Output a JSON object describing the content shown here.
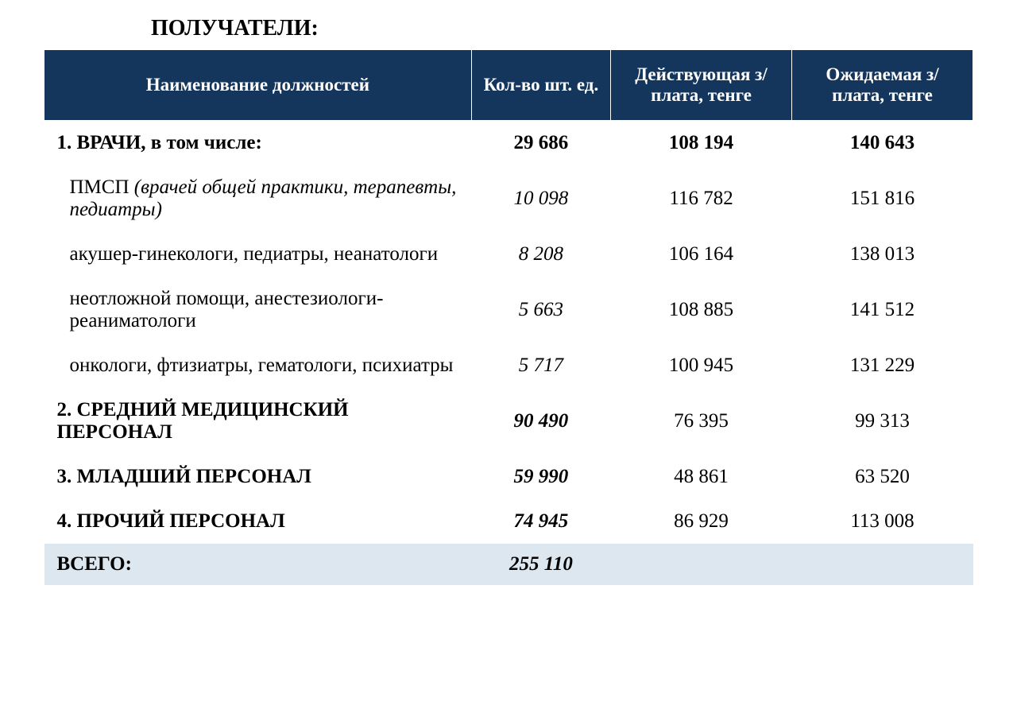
{
  "title": "ПОЛУЧАТЕЛИ:",
  "table": {
    "header_bg_color": "#14365c",
    "header_text_color": "#ffffff",
    "total_bg_color": "#dce7ef",
    "columns": [
      "Наименование должностей",
      "Кол-во шт. ед.",
      "Действующая з/плата, тенге",
      "Ожидаемая з/плата, тенге"
    ],
    "rows": [
      {
        "name": "1. ВРАЧИ, в том числе:",
        "count": "29 686",
        "current": "108 194",
        "expected": "140 643",
        "style": "bold"
      },
      {
        "name_prefix": "ПМСП  ",
        "name_italic": "(врачей общей практики, терапевты, педиатры)",
        "count": "10 098",
        "current": "116 782",
        "expected": "151 816",
        "style": "sub_pmsp"
      },
      {
        "name": "акушер-гинекологи, педиатры, неанатологи",
        "count": "8 208",
        "current": "106 164",
        "expected": "138 013",
        "style": "sub"
      },
      {
        "name": "неотложной помощи, анестезиологи-реаниматологи",
        "count": "5 663",
        "current": "108 885",
        "expected": "141 512",
        "style": "sub"
      },
      {
        "name": "онкологи, фтизиатры, гематологи, психиатры",
        "count": "5 717",
        "current": "100 945",
        "expected": "131 229",
        "style": "sub"
      },
      {
        "name": "2. СРЕДНИЙ МЕДИЦИНСКИЙ ПЕРСОНАЛ",
        "count": "90 490",
        "current": "76 395",
        "expected": "99 313",
        "style": "bold_italic_count"
      },
      {
        "name": "3. МЛАДШИЙ ПЕРСОНАЛ",
        "count": "59 990",
        "current": "48 861",
        "expected": "63 520",
        "style": "bold_italic_count"
      },
      {
        "name": "4. ПРОЧИЙ ПЕРСОНАЛ",
        "count": "74 945",
        "current": "86 929",
        "expected": "113 008",
        "style": "bold_italic_count"
      }
    ],
    "total": {
      "name": "ВСЕГО:",
      "count": "255 110",
      "current": "",
      "expected": ""
    }
  }
}
